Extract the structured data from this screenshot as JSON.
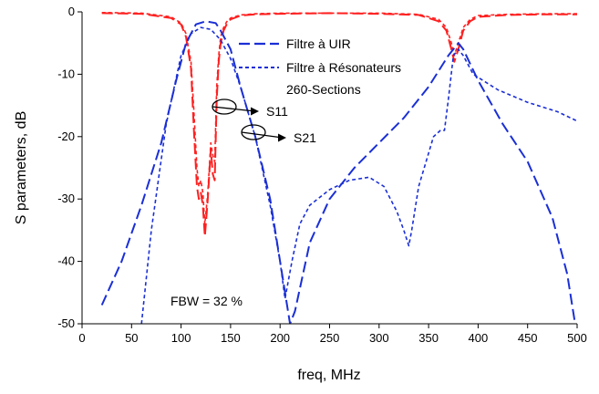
{
  "chart_data": {
    "type": "line",
    "xlabel": "freq, MHz",
    "ylabel": "S parameters, dB",
    "xlim": [
      0,
      500
    ],
    "ylim": [
      -50,
      0
    ],
    "xticks": [
      0,
      50,
      100,
      150,
      200,
      250,
      300,
      350,
      400,
      450,
      500
    ],
    "yticks": [
      0,
      -10,
      -20,
      -30,
      -40,
      -50
    ],
    "grid": false,
    "legend_position": "top-right",
    "legend": [
      {
        "label": "Filtre à UIR",
        "style": "long-dash"
      },
      {
        "label": "Filtre à Résonateurs",
        "style": "short-dash"
      },
      {
        "label": "260-Sections",
        "style": "none"
      }
    ],
    "annotations": {
      "s11": "S11",
      "s21": "S21",
      "fbw": "FBW = 32 %"
    },
    "colors": {
      "s11": "#ff2020",
      "s21": "#1a2fd6"
    },
    "series": [
      {
        "filter": "Filtre à UIR",
        "param": "S11",
        "color": "#ff2020",
        "dash": "long-dash",
        "x": [
          20,
          60,
          90,
          100,
          105,
          110,
          113,
          116,
          118,
          120,
          122,
          124,
          127,
          130,
          132,
          134,
          136,
          138,
          140,
          143,
          146,
          150,
          160,
          175,
          200,
          250,
          300,
          340,
          360,
          368,
          373,
          376,
          380,
          385,
          392,
          400,
          430,
          470,
          500
        ],
        "y": [
          -0.2,
          -0.3,
          -1,
          -2,
          -4,
          -9,
          -19,
          -28,
          -30,
          -29,
          -31,
          -36,
          -30,
          -22,
          -26,
          -27,
          -14,
          -8,
          -5,
          -3,
          -2,
          -1.2,
          -0.6,
          -0.4,
          -0.3,
          -0.2,
          -0.3,
          -0.5,
          -1.5,
          -3,
          -6,
          -8,
          -6,
          -3,
          -1.5,
          -0.8,
          -0.5,
          -0.4,
          -0.4
        ]
      },
      {
        "filter": "Filtre à Résonateurs",
        "param": "S11",
        "color": "#ff2020",
        "dash": "short-dash",
        "x": [
          20,
          60,
          90,
          100,
          105,
          110,
          113,
          116,
          118,
          120,
          122,
          124,
          127,
          130,
          132,
          134,
          136,
          138,
          140,
          143,
          146,
          150,
          160,
          175,
          200,
          250,
          300,
          340,
          360,
          368,
          373,
          376,
          380,
          385,
          392,
          400,
          430,
          470,
          500
        ],
        "y": [
          -0.1,
          -0.2,
          -0.8,
          -1.8,
          -3.5,
          -8,
          -16,
          -25,
          -28,
          -27,
          -29,
          -34,
          -29,
          -21,
          -23,
          -24,
          -12,
          -7,
          -4,
          -2.5,
          -1.6,
          -1,
          -0.5,
          -0.3,
          -0.2,
          -0.2,
          -0.2,
          -0.4,
          -1.2,
          -2.5,
          -5,
          -7,
          -5,
          -2.5,
          -1.2,
          -0.6,
          -0.4,
          -0.3,
          -0.3
        ]
      },
      {
        "filter": "Filtre à UIR",
        "param": "S21",
        "color": "#1a2fd6",
        "dash": "long-dash",
        "x": [
          20,
          40,
          60,
          80,
          95,
          105,
          115,
          125,
          135,
          140,
          150,
          160,
          175,
          190,
          200,
          210,
          215,
          230,
          250,
          275,
          300,
          325,
          350,
          370,
          380,
          385,
          400,
          425,
          450,
          475,
          490,
          498
        ],
        "y": [
          -47,
          -40,
          -31,
          -21,
          -11,
          -5,
          -2,
          -1.5,
          -1.8,
          -3,
          -6,
          -12,
          -20,
          -30,
          -40,
          -50,
          -48,
          -37,
          -30,
          -25,
          -21,
          -17,
          -12,
          -7,
          -5,
          -6,
          -11,
          -18,
          -24,
          -33,
          -42,
          -50
        ]
      },
      {
        "filter": "Filtre à Résonateurs",
        "param": "S21",
        "color": "#1a2fd6",
        "dash": "short-dash",
        "x": [
          60,
          70,
          85,
          100,
          110,
          120,
          130,
          140,
          150,
          160,
          175,
          190,
          200,
          205,
          212,
          220,
          230,
          250,
          270,
          290,
          305,
          318,
          325,
          330,
          333,
          340,
          355,
          362,
          366,
          370,
          375,
          380,
          385,
          395,
          420,
          450,
          480,
          500
        ],
        "y": [
          -50,
          -35,
          -18,
          -7,
          -3.5,
          -2.5,
          -2.8,
          -4.5,
          -7.5,
          -12,
          -20,
          -31,
          -40,
          -46,
          -40,
          -34,
          -31,
          -28.5,
          -27,
          -26.5,
          -28,
          -32,
          -35,
          -37.5,
          -35,
          -28,
          -20,
          -19,
          -19,
          -14,
          -7,
          -6,
          -7,
          -10,
          -12.5,
          -14.5,
          -16,
          -17.5
        ]
      }
    ]
  }
}
